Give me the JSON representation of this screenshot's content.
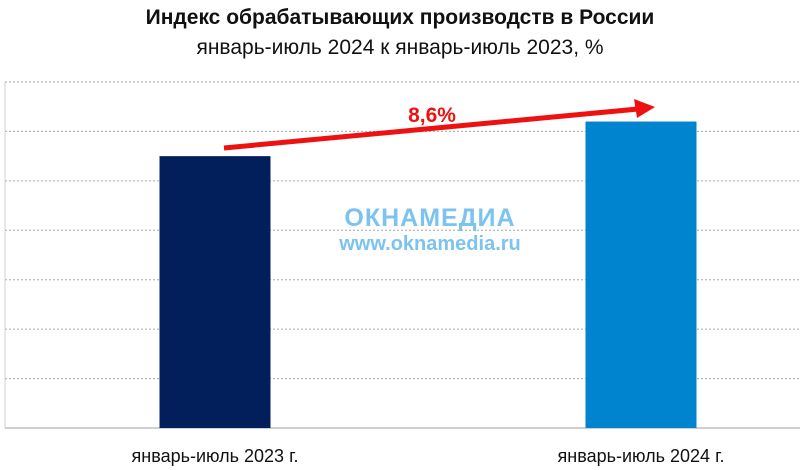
{
  "chart_data": {
    "type": "bar",
    "title": "Индекс обрабатывающих производств в России",
    "subtitle": "январь-июль 2024 к январь-июль 2023, %",
    "categories": [
      "январь-июль 2023 г.",
      "январь-июль 2024 г."
    ],
    "values": [
      5.5,
      6.2
    ],
    "colors": [
      "#021f5c",
      "#0084cf"
    ],
    "ylim": [
      0,
      7
    ],
    "grid_step": 1,
    "grid": true,
    "xlabel": "",
    "ylabel": "",
    "annotation": {
      "text": "8,6%",
      "color": "#ee1111"
    },
    "watermark": {
      "logo": "ОКНАМЕДИА",
      "url": "www.oknamedia.ru",
      "color": "#7cc3ef"
    }
  }
}
